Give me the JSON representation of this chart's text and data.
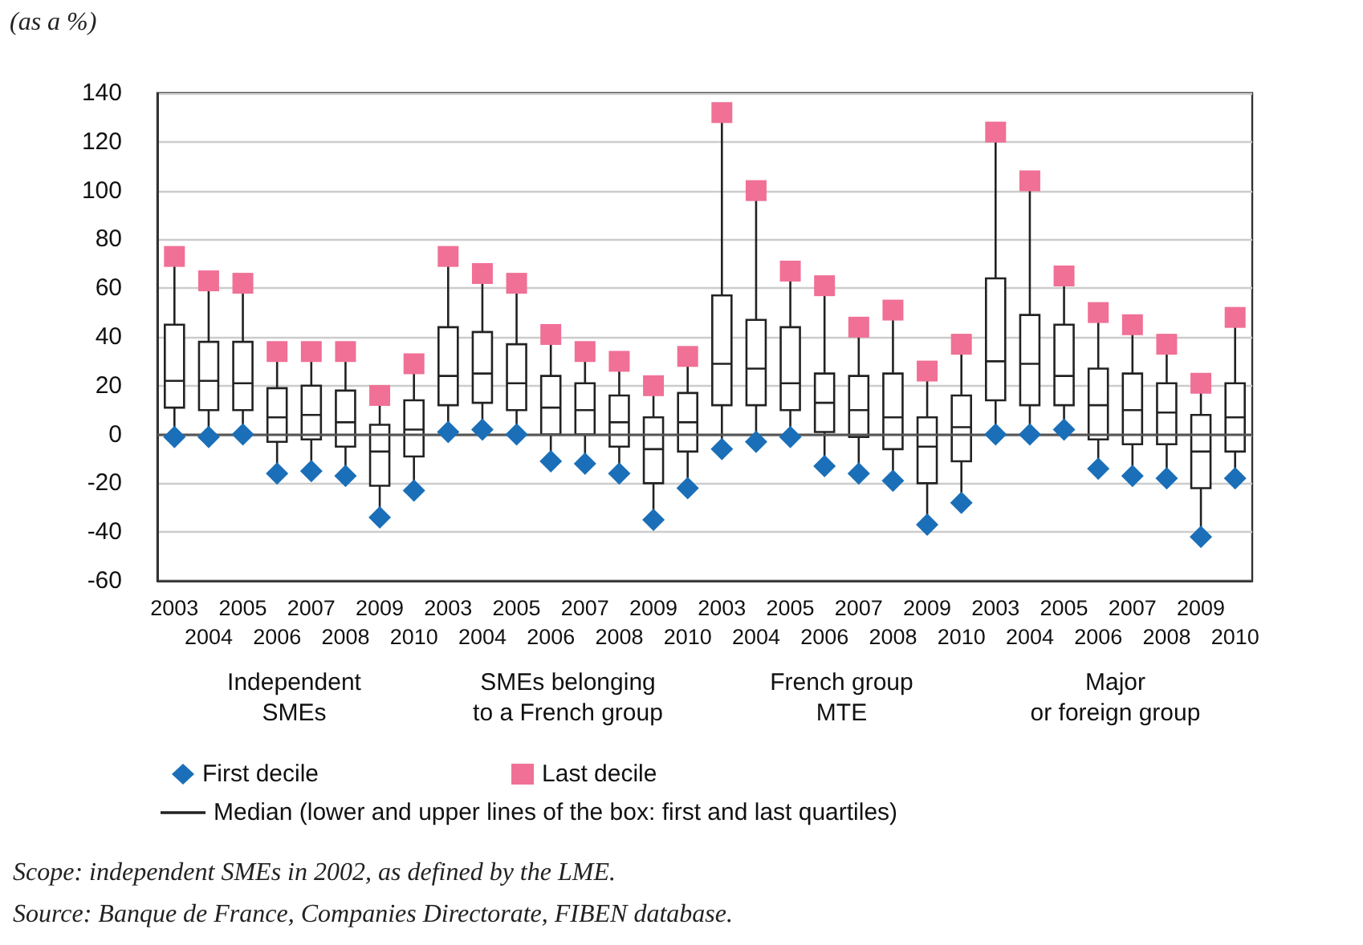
{
  "chart_data": {
    "type": "box",
    "ylabel": "(as a %)",
    "categories": [
      "2003",
      "2004",
      "2005",
      "2006",
      "2007",
      "2008",
      "2009",
      "2010",
      "2003",
      "2004",
      "2005",
      "2006",
      "2007",
      "2008",
      "2009",
      "2010",
      "2003",
      "2004",
      "2005",
      "2006",
      "2007",
      "2008",
      "2009",
      "2010",
      "2003",
      "2004",
      "2005",
      "2006",
      "2007",
      "2008",
      "2009",
      "2010"
    ],
    "ylim": [
      -60,
      140
    ],
    "yticks": [
      -60,
      -40,
      -20,
      0,
      20,
      40,
      60,
      80,
      100,
      120,
      140
    ],
    "grid": "y",
    "legend": "bottom",
    "ref_lines": [
      {
        "axis": "y",
        "value": 0,
        "color": "#555555"
      }
    ],
    "annotations": [
      "Independent\nSMEs",
      "SMEs belonging\nto a French group",
      "French group\nMTE",
      "Major\nor foreign group",
      "Scope: independent SMEs in 2002, as defined by the LME.",
      "Source: Banque de France, Companies Directorate, FIBEN database."
    ],
    "series": [
      {
        "name": "Median (lower and upper lines of the box: first and last quartiles)",
        "color": "#222222",
        "boxes": [
          {
            "low": -1,
            "q1": 11,
            "median": 22,
            "q3": 45,
            "high": 73
          },
          {
            "low": -1,
            "q1": 10,
            "median": 22,
            "q3": 38,
            "high": 63
          },
          {
            "low": 0,
            "q1": 10,
            "median": 21,
            "q3": 38,
            "high": 62
          },
          {
            "low": -16,
            "q1": -3,
            "median": 7,
            "q3": 19,
            "high": 34
          },
          {
            "low": -15,
            "q1": -2,
            "median": 8,
            "q3": 20,
            "high": 34
          },
          {
            "low": -17,
            "q1": -5,
            "median": 5,
            "q3": 18,
            "high": 34
          },
          {
            "low": -34,
            "q1": -21,
            "median": -7,
            "q3": 4,
            "high": 16
          },
          {
            "low": -23,
            "q1": -9,
            "median": 2,
            "q3": 14,
            "high": 29
          },
          {
            "low": 1,
            "q1": 12,
            "median": 24,
            "q3": 44,
            "high": 73
          },
          {
            "low": 2,
            "q1": 13,
            "median": 25,
            "q3": 42,
            "high": 66
          },
          {
            "low": 0,
            "q1": 10,
            "median": 21,
            "q3": 37,
            "high": 62
          },
          {
            "low": -11,
            "q1": 0,
            "median": 11,
            "q3": 24,
            "high": 41
          },
          {
            "low": -12,
            "q1": 0,
            "median": 10,
            "q3": 21,
            "high": 34
          },
          {
            "low": -16,
            "q1": -5,
            "median": 5,
            "q3": 16,
            "high": 30
          },
          {
            "low": -35,
            "q1": -20,
            "median": -6,
            "q3": 7,
            "high": 20
          },
          {
            "low": -22,
            "q1": -7,
            "median": 5,
            "q3": 17,
            "high": 32
          },
          {
            "low": -6,
            "q1": 12,
            "median": 29,
            "q3": 57,
            "high": 132
          },
          {
            "low": -3,
            "q1": 12,
            "median": 27,
            "q3": 47,
            "high": 100
          },
          {
            "low": -1,
            "q1": 10,
            "median": 21,
            "q3": 44,
            "high": 67
          },
          {
            "low": -13,
            "q1": 1,
            "median": 13,
            "q3": 25,
            "high": 61
          },
          {
            "low": -16,
            "q1": -1,
            "median": 10,
            "q3": 24,
            "high": 44
          },
          {
            "low": -19,
            "q1": -6,
            "median": 7,
            "q3": 25,
            "high": 51
          },
          {
            "low": -37,
            "q1": -20,
            "median": -5,
            "q3": 7,
            "high": 26
          },
          {
            "low": -28,
            "q1": -11,
            "median": 3,
            "q3": 16,
            "high": 37
          },
          {
            "low": 0,
            "q1": 14,
            "median": 30,
            "q3": 64,
            "high": 124
          },
          {
            "low": 0,
            "q1": 12,
            "median": 29,
            "q3": 49,
            "high": 104
          },
          {
            "low": 2,
            "q1": 12,
            "median": 24,
            "q3": 45,
            "high": 65
          },
          {
            "low": -14,
            "q1": -2,
            "median": 12,
            "q3": 27,
            "high": 50
          },
          {
            "low": -17,
            "q1": -4,
            "median": 10,
            "q3": 25,
            "high": 45
          },
          {
            "low": -18,
            "q1": -4,
            "median": 9,
            "q3": 21,
            "high": 37
          },
          {
            "low": -42,
            "q1": -22,
            "median": -7,
            "q3": 8,
            "high": 21
          },
          {
            "low": -18,
            "q1": -7,
            "median": 7,
            "q3": 21,
            "high": 48
          }
        ]
      },
      {
        "type": "scatter",
        "name": "First decile",
        "color": "#1a6fb8",
        "marker": "diamond",
        "values": [
          -1,
          -1,
          0,
          -16,
          -15,
          -17,
          -34,
          -23,
          1,
          2,
          0,
          -11,
          -12,
          -16,
          -35,
          -22,
          -6,
          -3,
          -1,
          -13,
          -16,
          -19,
          -37,
          -28,
          0,
          0,
          2,
          -14,
          -17,
          -18,
          -42,
          -18
        ]
      },
      {
        "type": "scatter",
        "name": "Last decile",
        "color": "#f07096",
        "marker": "square",
        "values": [
          73,
          63,
          62,
          34,
          34,
          34,
          16,
          29,
          73,
          66,
          62,
          41,
          34,
          30,
          20,
          32,
          132,
          100,
          67,
          61,
          44,
          51,
          26,
          37,
          124,
          104,
          65,
          50,
          45,
          37,
          21,
          48
        ]
      }
    ]
  }
}
